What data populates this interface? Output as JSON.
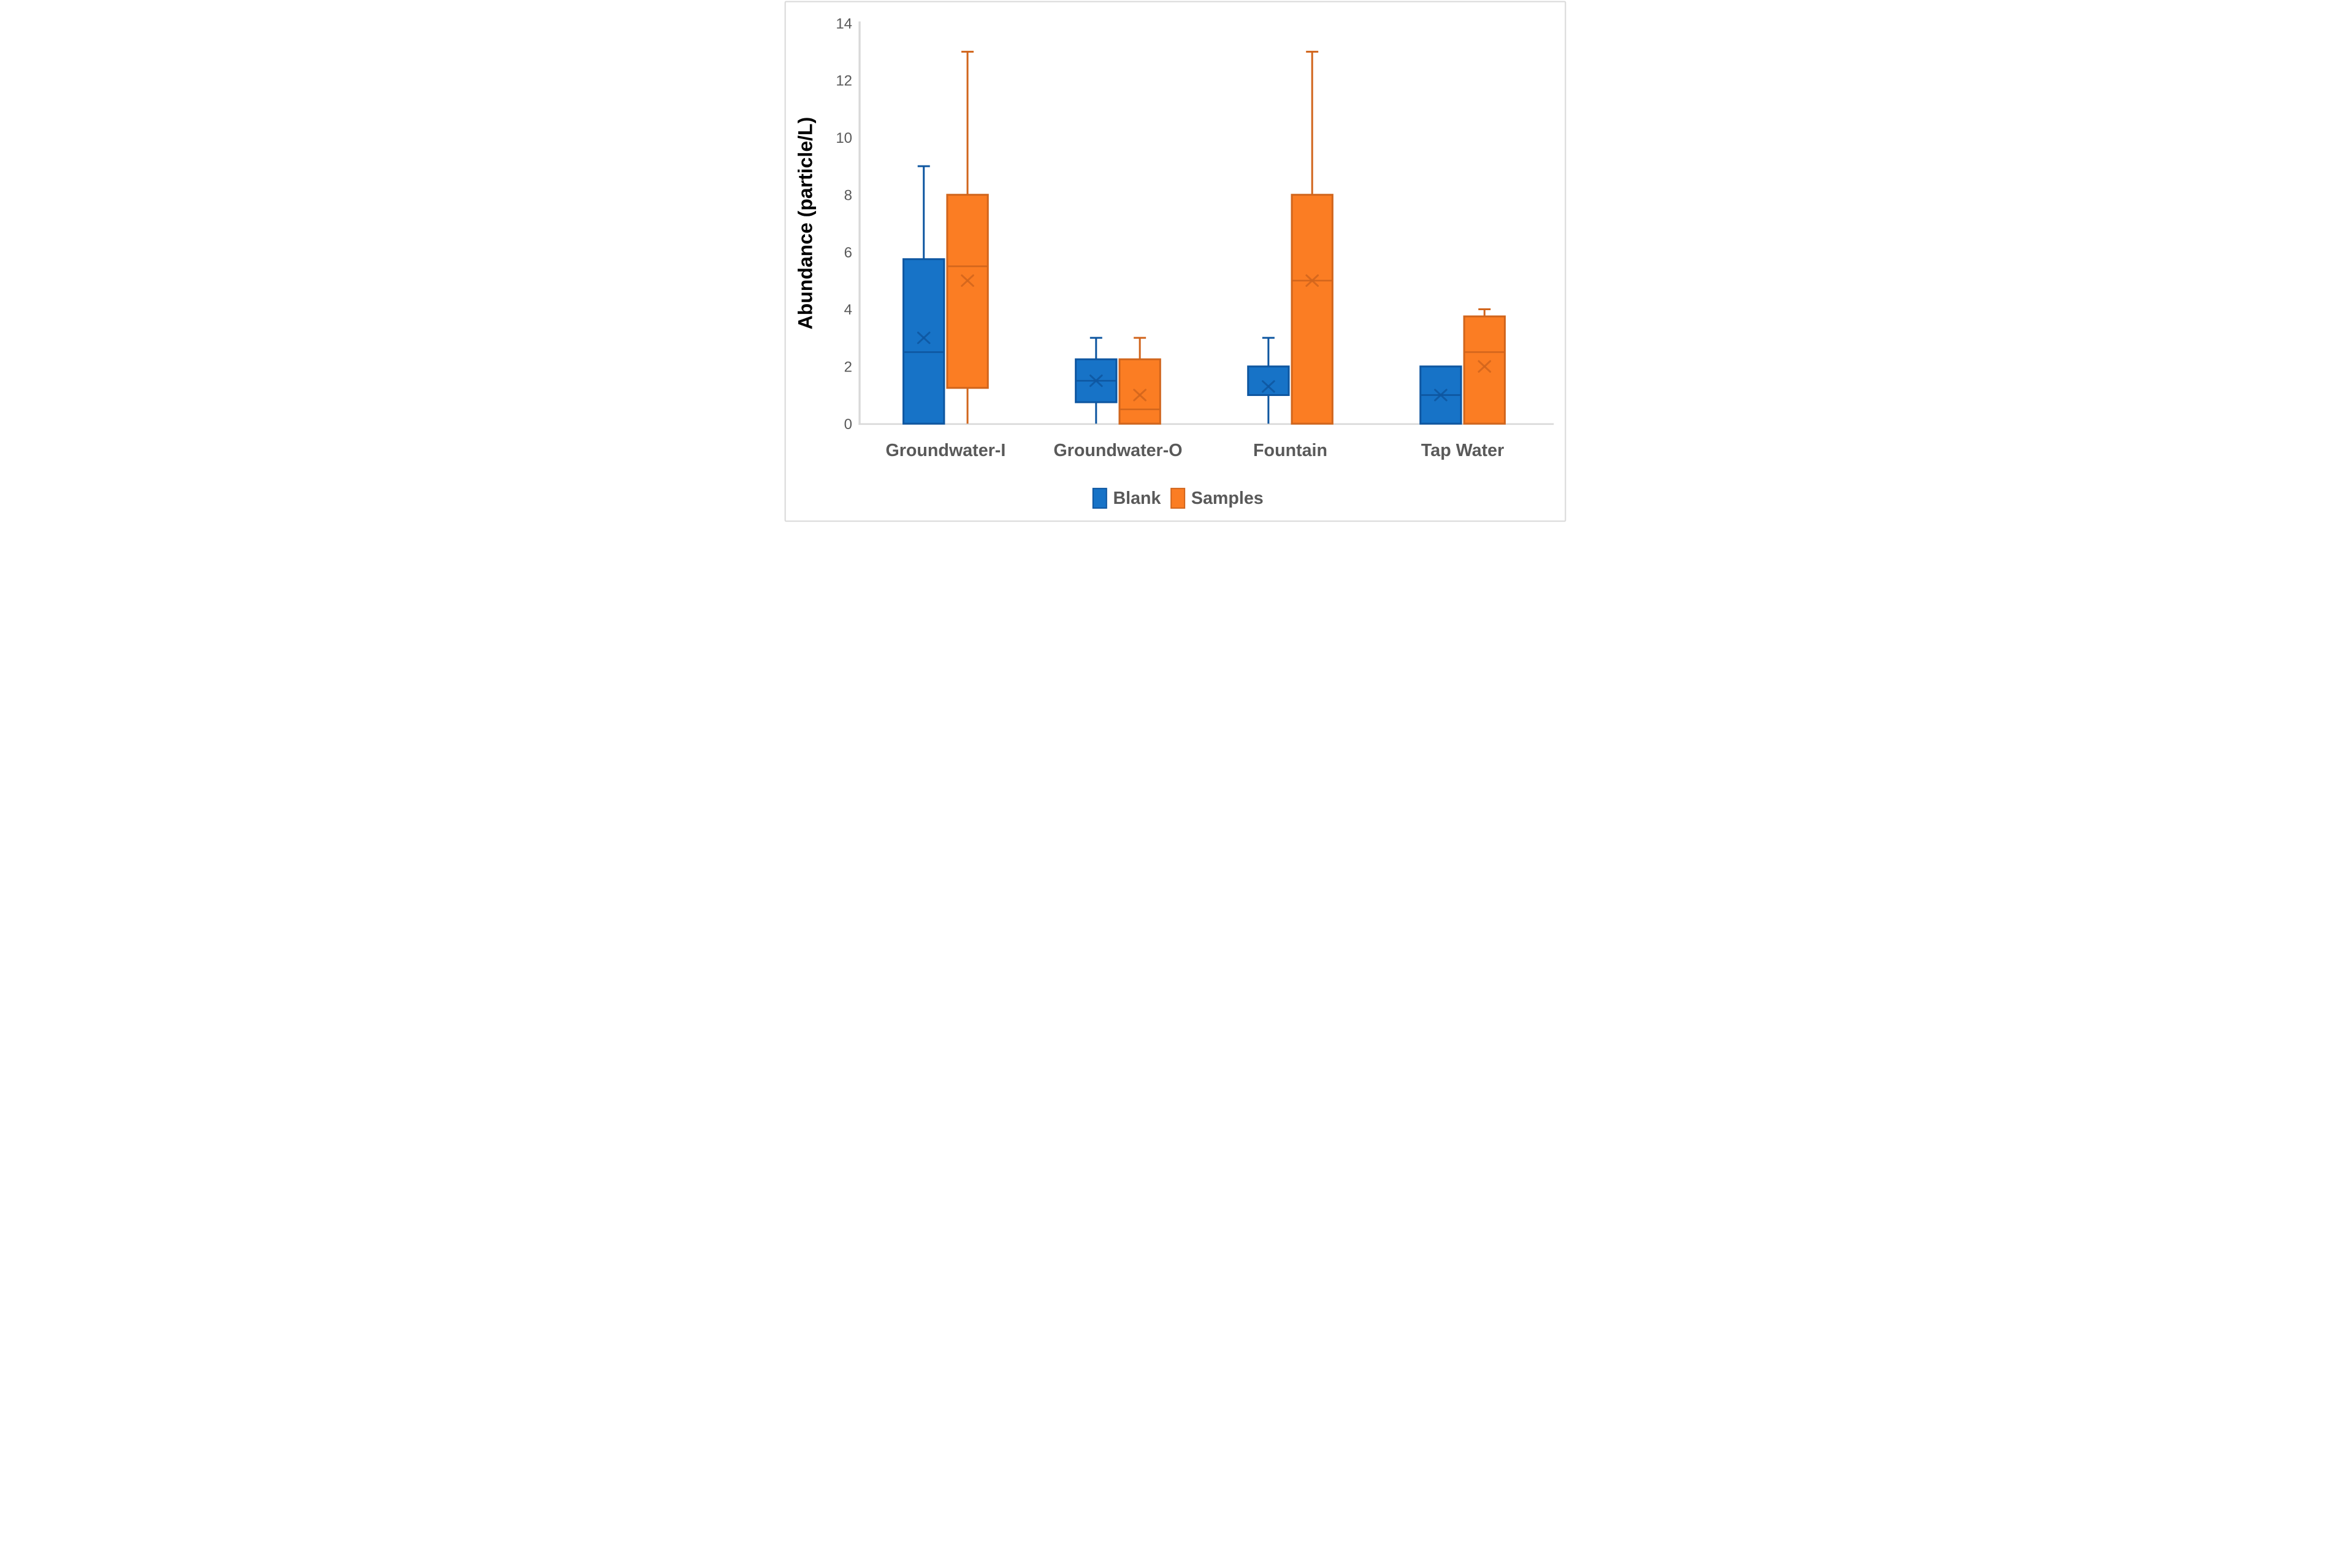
{
  "chart_data": {
    "type": "boxplot",
    "title": "",
    "xlabel": "",
    "ylabel": "Abundance (particle/L)",
    "ylim": [
      0,
      14
    ],
    "ytick_step": 2,
    "grid": false,
    "legend_position": "bottom",
    "categories": [
      "Groundwater-I",
      "Groundwater-O",
      "Fountain",
      "Tap Water"
    ],
    "series": [
      {
        "name": "Blank",
        "fill": "#1773C7",
        "stroke": "#0E56A0",
        "boxes": [
          {
            "min": 0,
            "q1": 0,
            "median": 2.5,
            "q3": 5.75,
            "max": 9,
            "mean": 3
          },
          {
            "min": 0,
            "q1": 0.75,
            "median": 1.5,
            "q3": 2.25,
            "max": 3,
            "mean": 1.5
          },
          {
            "min": 0,
            "q1": 1,
            "median": 1,
            "q3": 2,
            "max": 3,
            "mean": 1.3
          },
          {
            "min": 0,
            "q1": 0,
            "median": 1,
            "q3": 2,
            "max": 2,
            "mean": 1
          }
        ]
      },
      {
        "name": "Samples",
        "fill": "#FB7D23",
        "stroke": "#D1651C",
        "boxes": [
          {
            "min": 0,
            "q1": 1.25,
            "median": 5.5,
            "q3": 8,
            "max": 13,
            "mean": 5
          },
          {
            "min": 0,
            "q1": 0,
            "median": 0.5,
            "q3": 2.25,
            "max": 3,
            "mean": 1
          },
          {
            "min": 0,
            "q1": 0,
            "median": 5,
            "q3": 8,
            "max": 13,
            "mean": 5
          },
          {
            "min": 0,
            "q1": 0,
            "median": 2.5,
            "q3": 3.75,
            "max": 4,
            "mean": 2
          }
        ]
      }
    ],
    "yticks": [
      0,
      2,
      4,
      6,
      8,
      10,
      12,
      14
    ]
  },
  "colors": {
    "axis_line": "#D9D9D9",
    "frame": "#D9D9D9",
    "tick_text": "#595959",
    "category_text": "#595959",
    "ylabel_text": "#000000",
    "legend_text": "#595959",
    "background": "#FFFFFF"
  }
}
